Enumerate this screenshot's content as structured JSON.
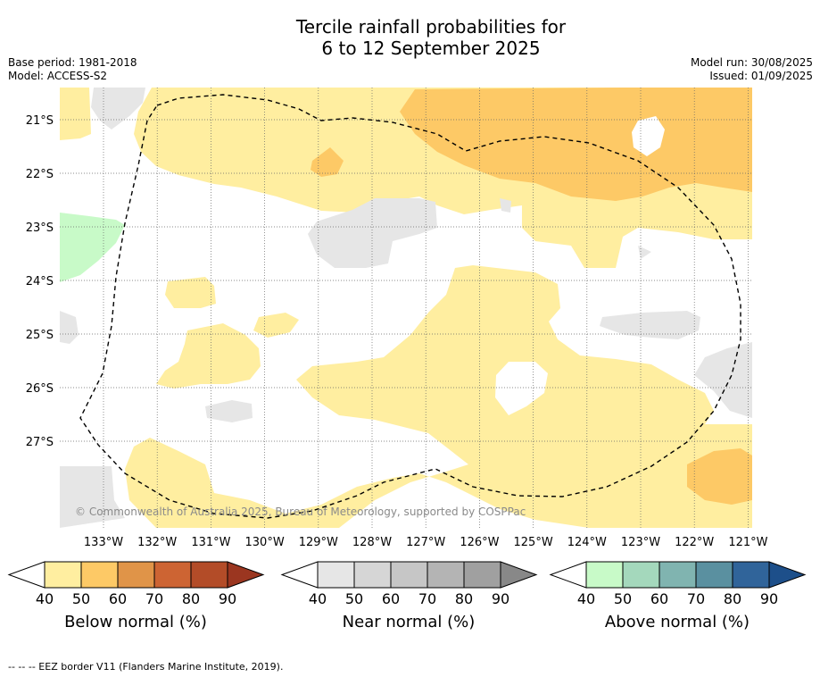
{
  "title_line1": "Tercile rainfall probabilities for",
  "title_line2": "6 to 12 September 2025",
  "base_period": "Base period: 1981-2018",
  "model": "Model: ACCESS-S2",
  "model_run": "Model run: 30/08/2025",
  "issued": "Issued: 01/09/2025",
  "copyright": "© Commonwealth of Australia 2025, Bureau of Meteorology, supported by COSPPac",
  "lat_labels": [
    "21°S",
    "22°S",
    "23°S",
    "24°S",
    "25°S",
    "26°S",
    "27°S"
  ],
  "lon_labels": [
    "133°W",
    "132°W",
    "131°W",
    "130°W",
    "129°W",
    "128°W",
    "127°W",
    "126°W",
    "125°W",
    "124°W",
    "123°W",
    "122°W",
    "121°W"
  ],
  "colorbars": [
    {
      "label": "Below normal (%)",
      "ticks": [
        "40",
        "50",
        "60",
        "70",
        "80",
        "90"
      ],
      "colors": [
        "#ffeea0",
        "#fdc966",
        "#e09448",
        "#cd6433",
        "#b34c28",
        "#9b3620"
      ]
    },
    {
      "label": "Near normal (%)",
      "ticks": [
        "40",
        "50",
        "60",
        "70",
        "80",
        "90"
      ],
      "colors": [
        "#e6e6e6",
        "#d6d6d6",
        "#c6c6c6",
        "#b4b4b4",
        "#a0a0a0",
        "#888888"
      ]
    },
    {
      "label": "Above normal (%)",
      "ticks": [
        "40",
        "50",
        "60",
        "70",
        "80",
        "90"
      ],
      "colors": [
        "#c8fac8",
        "#a4d8bc",
        "#80b4b0",
        "#5a90a0",
        "#30649a",
        "#1d4f8a"
      ]
    }
  ],
  "footnote": "--  --  -- EEZ border V11 (Flanders Marine Institute, 2019).",
  "colors": {
    "below_40": "#ffeea0",
    "below_50": "#fdc966",
    "near_40": "#e6e6e6",
    "above_40": "#c8fac8",
    "eez_border": "#000000"
  }
}
